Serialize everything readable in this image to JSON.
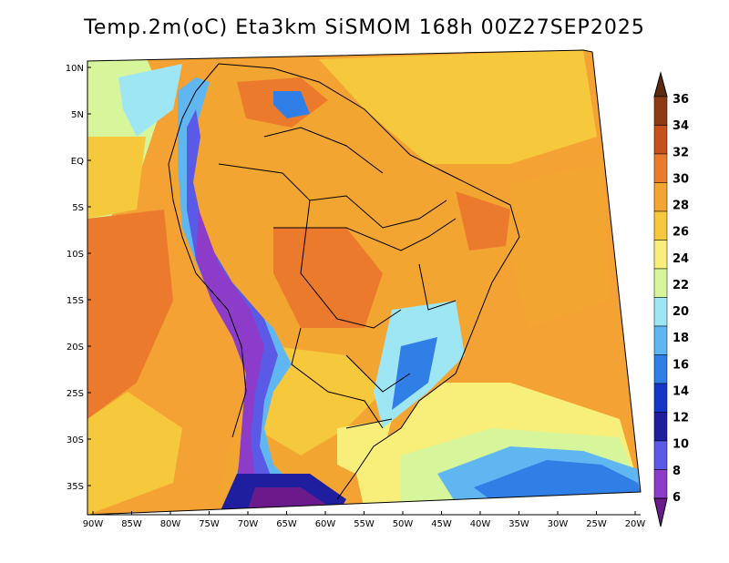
{
  "title": "Temp.2m(oC) Eta3km SiSMOM 168h 00Z27SEP2025",
  "map": {
    "lat_labels": [
      "10N",
      "5N",
      "EQ",
      "5S",
      "10S",
      "15S",
      "20S",
      "25S",
      "30S",
      "35S"
    ],
    "lon_labels": [
      "90W",
      "85W",
      "80W",
      "75W",
      "70W",
      "65W",
      "60W",
      "55W",
      "50W",
      "45W",
      "40W",
      "35W",
      "30W",
      "25W",
      "20W"
    ]
  },
  "colorbar": {
    "labels": [
      "36",
      "34",
      "32",
      "30",
      "28",
      "26",
      "24",
      "22",
      "20",
      "18",
      "16",
      "14",
      "12",
      "10",
      "8",
      "6"
    ],
    "colors": [
      "#5a2a0e",
      "#8b3a14",
      "#c8501c",
      "#ec7a2c",
      "#f3a532",
      "#f6c93c",
      "#f8ef7a",
      "#d7f59a",
      "#9fe6f5",
      "#60b6f0",
      "#2f7fe6",
      "#1436c8",
      "#1e1e9e",
      "#5a5ae6",
      "#8c3cc8",
      "#6a1a8a"
    ]
  }
}
